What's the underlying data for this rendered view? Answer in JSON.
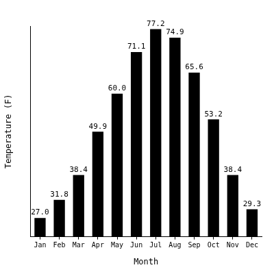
{
  "chart_data": {
    "type": "bar",
    "x_label": "Month",
    "y_label": "Temperature (F)",
    "categories": [
      "Jan",
      "Feb",
      "Mar",
      "Apr",
      "May",
      "Jun",
      "Jul",
      "Aug",
      "Sep",
      "Oct",
      "Nov",
      "Dec"
    ],
    "values": [
      27.0,
      31.8,
      38.4,
      49.9,
      60.0,
      71.1,
      77.2,
      74.9,
      65.6,
      53.2,
      38.4,
      29.3
    ],
    "value_labels": [
      "27.0",
      "31.8",
      "38.4",
      "49.9",
      "60.0",
      "71.1",
      "77.2",
      "74.9",
      "65.6",
      "53.2",
      "38.4",
      "29.3"
    ],
    "color": "#000000",
    "ylim": [
      22,
      78
    ],
    "grid": false,
    "data_labels": true,
    "tick_labels": "x"
  }
}
